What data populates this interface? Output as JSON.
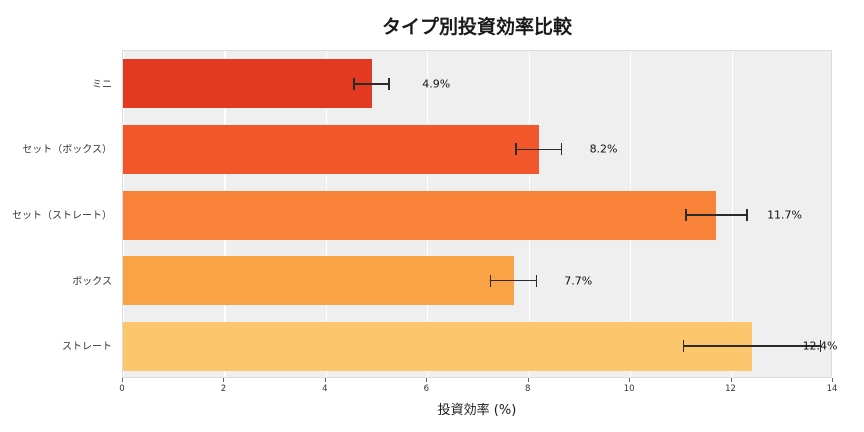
{
  "chart_data": {
    "type": "bar",
    "orientation": "horizontal",
    "title": "タイプ別投資効率比較",
    "xlabel": "投資効率 (%)",
    "ylabel": "",
    "categories": [
      "ミニ",
      "セット（ボックス）",
      "セット（ストレート）",
      "ボックス",
      "ストレート"
    ],
    "values": [
      4.9,
      8.2,
      11.7,
      7.7,
      12.4
    ],
    "errors": [
      0.35,
      0.45,
      0.6,
      0.45,
      1.35
    ],
    "value_labels": [
      "4.9%",
      "8.2%",
      "11.7%",
      "7.7%",
      "12.4%"
    ],
    "bar_colors": [
      "#e23a20",
      "#f2562b",
      "#f88338",
      "#f9a246",
      "#fcc66c"
    ],
    "xlim": [
      0,
      14
    ],
    "xticks": [
      0,
      2,
      4,
      6,
      8,
      10,
      12,
      14
    ],
    "grid": true,
    "legend": false,
    "plot_background": "#efefef",
    "error_bar_color": "#2b2b2b"
  }
}
